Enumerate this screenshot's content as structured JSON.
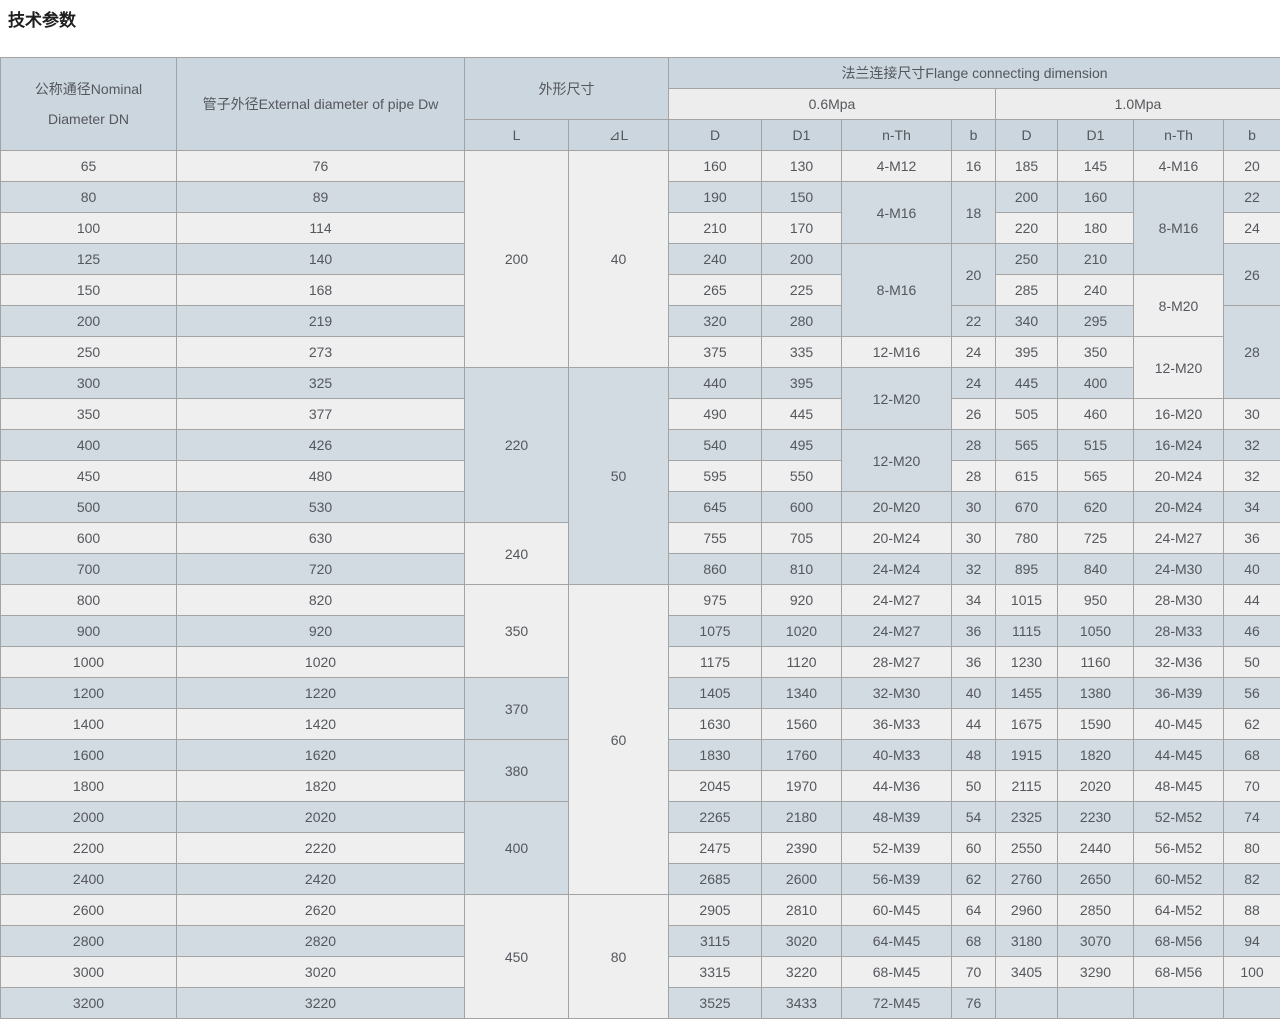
{
  "page_title": "技术参数",
  "colors": {
    "row_light": "#efefef",
    "row_blue": "#d2dbe2",
    "header_blue": "#ccd6de",
    "header_light": "#ededed",
    "border": "#a3a3a3",
    "text": "#54575c"
  },
  "table": {
    "header": {
      "col_dn_line1": "公称通径Nominal",
      "col_dn_line2": "Diameter DN",
      "col_dw": "管子外径External diameter of pipe Dw",
      "col_dim": "外形尺寸",
      "col_flange": "法兰连接尺寸Flange connecting dimension",
      "col_06": "0.6Mpa",
      "col_10": "1.0Mpa",
      "sub_l": "L",
      "sub_dl": "⊿L",
      "sub_d": "D",
      "sub_d1": "D1",
      "sub_nth": "n-Th",
      "sub_b": "b"
    },
    "dn": [
      "65",
      "80",
      "100",
      "125",
      "150",
      "200",
      "250",
      "300",
      "350",
      "400",
      "450",
      "500",
      "600",
      "700",
      "800",
      "900",
      "1000",
      "1200",
      "1400",
      "1600",
      "1800",
      "2000",
      "2200",
      "2400",
      "2600",
      "2800",
      "3000",
      "3200"
    ],
    "dw": [
      "76",
      "89",
      "114",
      "140",
      "168",
      "219",
      "273",
      "325",
      "377",
      "426",
      "480",
      "530",
      "630",
      "720",
      "820",
      "920",
      "1020",
      "1220",
      "1420",
      "1620",
      "1820",
      "2020",
      "2220",
      "2420",
      "2620",
      "2820",
      "3020",
      "3220"
    ],
    "l_spans": [
      {
        "v": "200",
        "n": 7
      },
      {
        "v": "220",
        "n": 5
      },
      {
        "v": "240",
        "n": 2
      },
      {
        "v": "350",
        "n": 3
      },
      {
        "v": "370",
        "n": 2
      },
      {
        "v": "380",
        "n": 2
      },
      {
        "v": "400",
        "n": 3
      },
      {
        "v": "450",
        "n": 4
      }
    ],
    "dl_spans": [
      {
        "v": "40",
        "n": 7
      },
      {
        "v": "50",
        "n": 7
      },
      {
        "v": "60",
        "n": 10
      },
      {
        "v": "80",
        "n": 4
      }
    ],
    "p06": {
      "d": [
        "160",
        "190",
        "210",
        "240",
        "265",
        "320",
        "375",
        "440",
        "490",
        "540",
        "595",
        "645",
        "755",
        "860",
        "975",
        "1075",
        "1175",
        "1405",
        "1630",
        "1830",
        "2045",
        "2265",
        "2475",
        "2685",
        "2905",
        "3115",
        "3315",
        "3525"
      ],
      "d1": [
        "130",
        "150",
        "170",
        "200",
        "225",
        "280",
        "335",
        "395",
        "445",
        "495",
        "550",
        "600",
        "705",
        "810",
        "920",
        "1020",
        "1120",
        "1340",
        "1560",
        "1760",
        "1970",
        "2180",
        "2390",
        "2600",
        "2810",
        "3020",
        "3220",
        "3433"
      ],
      "nth_spans": [
        {
          "v": "4-M12",
          "n": 1
        },
        {
          "v": "4-M16",
          "n": 2
        },
        {
          "v": "8-M16",
          "n": 3
        },
        {
          "v": "12-M16",
          "n": 1
        },
        {
          "v": "12-M20",
          "n": 2
        },
        {
          "v": "12-M20",
          "n": 2
        },
        {
          "v": "20-M20",
          "n": 1
        },
        {
          "v": "20-M24",
          "n": 1
        },
        {
          "v": "24-M24",
          "n": 1
        },
        {
          "v": "24-M27",
          "n": 1
        },
        {
          "v": "24-M27",
          "n": 1
        },
        {
          "v": "28-M27",
          "n": 1
        },
        {
          "v": "32-M30",
          "n": 1
        },
        {
          "v": "36-M33",
          "n": 1
        },
        {
          "v": "40-M33",
          "n": 1
        },
        {
          "v": "44-M36",
          "n": 1
        },
        {
          "v": "48-M39",
          "n": 1
        },
        {
          "v": "52-M39",
          "n": 1
        },
        {
          "v": "56-M39",
          "n": 1
        },
        {
          "v": "60-M45",
          "n": 1
        },
        {
          "v": "64-M45",
          "n": 1
        },
        {
          "v": "68-M45",
          "n": 1
        },
        {
          "v": "72-M45",
          "n": 1
        }
      ],
      "b_spans": [
        {
          "v": "16",
          "n": 1
        },
        {
          "v": "18",
          "n": 2
        },
        {
          "v": "20",
          "n": 2
        },
        {
          "v": "22",
          "n": 1
        },
        {
          "v": "24",
          "n": 1
        },
        {
          "v": "24",
          "n": 1
        },
        {
          "v": "26",
          "n": 1
        },
        {
          "v": "28",
          "n": 1
        },
        {
          "v": "28",
          "n": 1
        },
        {
          "v": "30",
          "n": 1
        },
        {
          "v": "30",
          "n": 1
        },
        {
          "v": "32",
          "n": 1
        },
        {
          "v": "34",
          "n": 1
        },
        {
          "v": "36",
          "n": 1
        },
        {
          "v": "36",
          "n": 1
        },
        {
          "v": "40",
          "n": 1
        },
        {
          "v": "44",
          "n": 1
        },
        {
          "v": "48",
          "n": 1
        },
        {
          "v": "50",
          "n": 1
        },
        {
          "v": "54",
          "n": 1
        },
        {
          "v": "60",
          "n": 1
        },
        {
          "v": "62",
          "n": 1
        },
        {
          "v": "64",
          "n": 1
        },
        {
          "v": "68",
          "n": 1
        },
        {
          "v": "70",
          "n": 1
        },
        {
          "v": "76",
          "n": 1
        }
      ]
    },
    "p10": {
      "d": [
        "185",
        "200",
        "220",
        "250",
        "285",
        "340",
        "395",
        "445",
        "505",
        "565",
        "615",
        "670",
        "780",
        "895",
        "1015",
        "1115",
        "1230",
        "1455",
        "1675",
        "1915",
        "2115",
        "2325",
        "2550",
        "2760",
        "2960",
        "3180",
        "3405",
        ""
      ],
      "d1": [
        "145",
        "160",
        "180",
        "210",
        "240",
        "295",
        "350",
        "400",
        "460",
        "515",
        "565",
        "620",
        "725",
        "840",
        "950",
        "1050",
        "1160",
        "1380",
        "1590",
        "1820",
        "2020",
        "2230",
        "2440",
        "2650",
        "2850",
        "3070",
        "3290",
        ""
      ],
      "nth_spans": [
        {
          "v": "4-M16",
          "n": 1
        },
        {
          "v": "8-M16",
          "n": 3
        },
        {
          "v": "8-M20",
          "n": 2
        },
        {
          "v": "12-M20",
          "n": 2
        },
        {
          "v": "16-M20",
          "n": 1
        },
        {
          "v": "16-M24",
          "n": 1
        },
        {
          "v": "20-M24",
          "n": 1
        },
        {
          "v": "20-M24",
          "n": 1
        },
        {
          "v": "24-M27",
          "n": 1
        },
        {
          "v": "24-M30",
          "n": 1
        },
        {
          "v": "28-M30",
          "n": 1
        },
        {
          "v": "28-M33",
          "n": 1
        },
        {
          "v": "32-M36",
          "n": 1
        },
        {
          "v": "36-M39",
          "n": 1
        },
        {
          "v": "40-M45",
          "n": 1
        },
        {
          "v": "44-M45",
          "n": 1
        },
        {
          "v": "48-M45",
          "n": 1
        },
        {
          "v": "52-M52",
          "n": 1
        },
        {
          "v": "56-M52",
          "n": 1
        },
        {
          "v": "60-M52",
          "n": 1
        },
        {
          "v": "64-M52",
          "n": 1
        },
        {
          "v": "68-M56",
          "n": 1
        },
        {
          "v": "68-M56",
          "n": 1
        },
        {
          "v": "",
          "n": 1
        }
      ],
      "b_spans": [
        {
          "v": "20",
          "n": 1
        },
        {
          "v": "22",
          "n": 1
        },
        {
          "v": "24",
          "n": 1
        },
        {
          "v": "26",
          "n": 2
        },
        {
          "v": "28",
          "n": 3
        },
        {
          "v": "30",
          "n": 1
        },
        {
          "v": "32",
          "n": 1
        },
        {
          "v": "32",
          "n": 1
        },
        {
          "v": "34",
          "n": 1
        },
        {
          "v": "36",
          "n": 1
        },
        {
          "v": "40",
          "n": 1
        },
        {
          "v": "44",
          "n": 1
        },
        {
          "v": "46",
          "n": 1
        },
        {
          "v": "50",
          "n": 1
        },
        {
          "v": "56",
          "n": 1
        },
        {
          "v": "62",
          "n": 1
        },
        {
          "v": "68",
          "n": 1
        },
        {
          "v": "70",
          "n": 1
        },
        {
          "v": "74",
          "n": 1
        },
        {
          "v": "80",
          "n": 1
        },
        {
          "v": "82",
          "n": 1
        },
        {
          "v": "88",
          "n": 1
        },
        {
          "v": "94",
          "n": 1
        },
        {
          "v": "100",
          "n": 1
        },
        {
          "v": "",
          "n": 1
        }
      ]
    }
  }
}
